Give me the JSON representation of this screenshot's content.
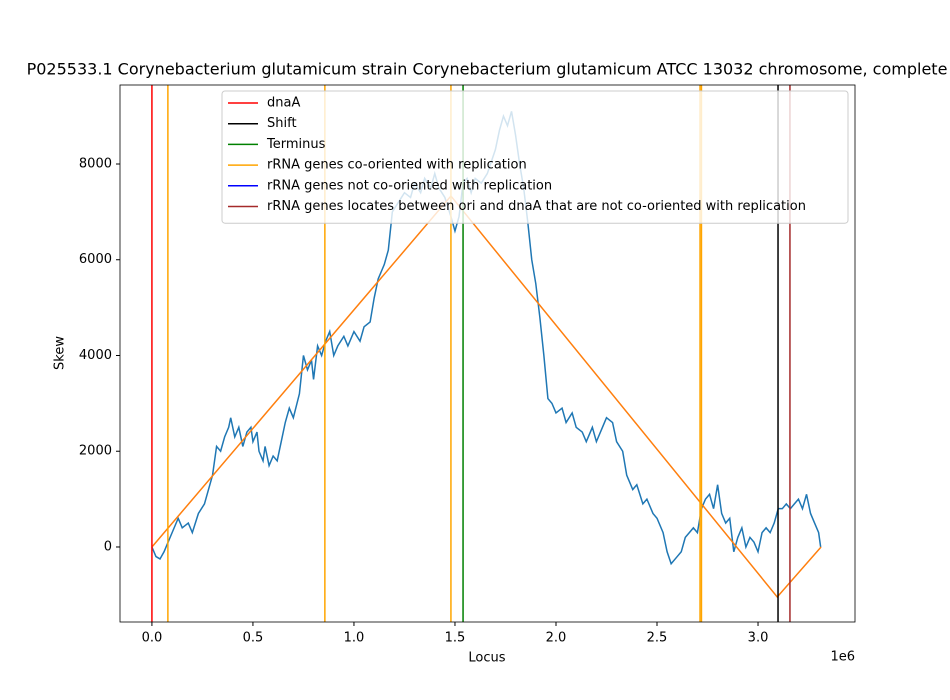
{
  "chart_data": {
    "type": "line",
    "title": "P025533.1 Corynebacterium glutamicum strain Corynebacterium glutamicum ATCC 13032 chromosome, complete",
    "x_label": "Locus",
    "y_label": "Skew",
    "x_offset_label": "1e6",
    "xlim": [
      -158000,
      3480000
    ],
    "ylim": [
      -1567,
      9650
    ],
    "xticks": [
      {
        "value": 0,
        "label": "0.0"
      },
      {
        "value": 500000,
        "label": "0.5"
      },
      {
        "value": 1000000,
        "label": "1.0"
      },
      {
        "value": 1500000,
        "label": "1.5"
      },
      {
        "value": 2000000,
        "label": "2.0"
      },
      {
        "value": 2500000,
        "label": "2.5"
      },
      {
        "value": 3000000,
        "label": "3.0"
      }
    ],
    "yticks": [
      0,
      2000,
      4000,
      6000,
      8000
    ],
    "legend": "upper right",
    "series": [
      {
        "color": "#1f77b4",
        "x": [
          0,
          20000,
          40000,
          60000,
          80000,
          100000,
          130000,
          150000,
          180000,
          200000,
          230000,
          260000,
          280000,
          300000,
          320000,
          340000,
          360000,
          380000,
          390000,
          410000,
          430000,
          450000,
          470000,
          490000,
          500000,
          520000,
          530000,
          550000,
          560000,
          580000,
          600000,
          620000,
          640000,
          660000,
          680000,
          700000,
          730000,
          750000,
          770000,
          790000,
          800000,
          820000,
          840000,
          860000,
          880000,
          900000,
          920000,
          950000,
          970000,
          1000000,
          1030000,
          1050000,
          1080000,
          1100000,
          1120000,
          1150000,
          1170000,
          1190000,
          1220000,
          1250000,
          1280000,
          1300000,
          1330000,
          1350000,
          1380000,
          1400000,
          1420000,
          1450000,
          1480000,
          1500000,
          1520000,
          1540000,
          1560000,
          1580000,
          1600000,
          1630000,
          1660000,
          1700000,
          1720000,
          1740000,
          1760000,
          1780000,
          1800000,
          1820000,
          1840000,
          1860000,
          1880000,
          1900000,
          1920000,
          1940000,
          1960000,
          1980000,
          2000000,
          2030000,
          2050000,
          2080000,
          2100000,
          2130000,
          2150000,
          2180000,
          2200000,
          2230000,
          2250000,
          2280000,
          2300000,
          2330000,
          2350000,
          2380000,
          2400000,
          2430000,
          2450000,
          2480000,
          2500000,
          2530000,
          2550000,
          2570000,
          2600000,
          2620000,
          2640000,
          2660000,
          2680000,
          2700000,
          2720000,
          2740000,
          2760000,
          2780000,
          2800000,
          2820000,
          2840000,
          2860000,
          2880000,
          2900000,
          2920000,
          2940000,
          2960000,
          2980000,
          3000000,
          3020000,
          3040000,
          3060000,
          3080000,
          3100000,
          3120000,
          3140000,
          3160000,
          3180000,
          3200000,
          3220000,
          3240000,
          3260000,
          3280000,
          3300000,
          3310000
        ],
        "values": [
          0,
          -200,
          -250,
          -100,
          100,
          300,
          600,
          400,
          500,
          300,
          700,
          900,
          1200,
          1500,
          2100,
          2000,
          2300,
          2500,
          2700,
          2300,
          2500,
          2100,
          2400,
          2500,
          2200,
          2400,
          2000,
          1800,
          2100,
          1700,
          1900,
          1800,
          2200,
          2600,
          2900,
          2700,
          3200,
          4000,
          3700,
          3900,
          3500,
          4200,
          4000,
          4300,
          4500,
          4000,
          4200,
          4400,
          4200,
          4500,
          4300,
          4600,
          4700,
          5200,
          5600,
          5900,
          6200,
          7000,
          7200,
          7400,
          7300,
          7600,
          7400,
          7700,
          7500,
          7800,
          7500,
          7300,
          6900,
          6600,
          6900,
          7600,
          7700,
          7400,
          7700,
          7600,
          7800,
          8300,
          8700,
          9000,
          8800,
          9100,
          8600,
          8000,
          7500,
          6800,
          6000,
          5500,
          4800,
          4000,
          3100,
          3000,
          2800,
          2900,
          2600,
          2800,
          2500,
          2400,
          2200,
          2500,
          2200,
          2500,
          2700,
          2600,
          2200,
          2000,
          1500,
          1200,
          1300,
          900,
          1000,
          700,
          600,
          300,
          -100,
          -350,
          -200,
          -100,
          200,
          300,
          400,
          300,
          800,
          1000,
          1100,
          800,
          1300,
          700,
          500,
          600,
          -100,
          200,
          400,
          0,
          200,
          100,
          -100,
          300,
          400,
          300,
          500,
          800,
          800,
          900,
          800,
          900,
          1000,
          800,
          1100,
          700,
          500,
          300,
          0
        ]
      },
      {
        "color": "#ff7f0e",
        "x": [
          0,
          1480000,
          3095000,
          3312000
        ],
        "values": [
          0,
          7330,
          -1044,
          0
        ]
      }
    ],
    "vlines": [
      {
        "name": "dnaA",
        "color": "red",
        "x": [
          0
        ]
      },
      {
        "name": "Shift",
        "color": "black",
        "x": [
          3099000
        ]
      },
      {
        "name": "Terminus",
        "color": "green",
        "x": [
          1540000
        ]
      },
      {
        "name": "rRNA genes co-oriented with replication",
        "color": "orange",
        "x": [
          79000,
          856000,
          1480000,
          2713000,
          2720000
        ]
      },
      {
        "name": "rRNA genes not co-oriented with replication",
        "color": "blue",
        "x": []
      },
      {
        "name": "rRNA genes locates between ori and dnaA that are not co-oriented with replication",
        "color": "brown",
        "x": [
          3158000
        ]
      }
    ]
  }
}
